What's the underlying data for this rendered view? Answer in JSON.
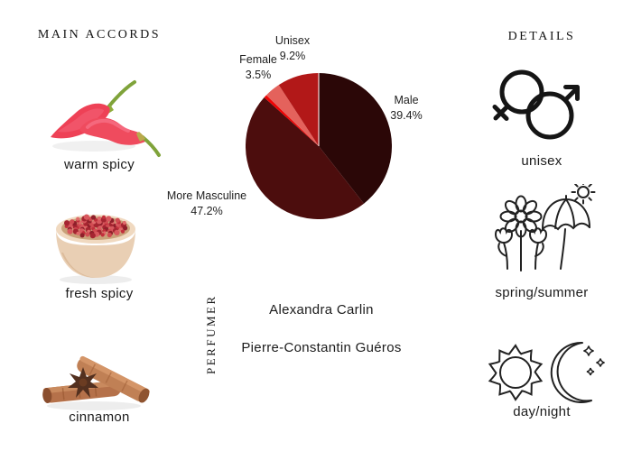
{
  "headers": {
    "main_accords": "MAIN ACCORDS",
    "details": "DETAILS"
  },
  "accords": [
    {
      "label": "warm spicy",
      "icon": "chili-peppers"
    },
    {
      "label": "fresh spicy",
      "icon": "pink-peppercorns-bowl"
    },
    {
      "label": "cinnamon",
      "icon": "cinnamon-sticks"
    }
  ],
  "details": [
    {
      "label": "unisex",
      "icon": "gender-unisex"
    },
    {
      "label": "spring/summer",
      "icon": "flowers-umbrella-sun"
    },
    {
      "label": "day/night",
      "icon": "sun-and-moon"
    }
  ],
  "perfumer": {
    "title": "PERFUMER",
    "names": [
      "Alexandra Carlin",
      "Pierre-Constantin Guéros"
    ]
  },
  "chart_data": {
    "type": "pie",
    "title": "",
    "direction": "clockwise",
    "start_angle_deg": 0,
    "legend_position": "none",
    "slices": [
      {
        "label": "Male",
        "value": 39.4,
        "color": "#2b0707"
      },
      {
        "label": "More Masculine",
        "value": 47.2,
        "color": "#4c0d0d"
      },
      {
        "label": "",
        "value": 0.7,
        "color": "#ee0404"
      },
      {
        "label": "Female",
        "value": 3.5,
        "color": "#e4625c"
      },
      {
        "label": "Unisex",
        "value": 9.2,
        "color": "#b21818"
      }
    ],
    "labels": {
      "male": {
        "name": "Male",
        "pct": "39.4%"
      },
      "more_masculine": {
        "name": "More Masculine",
        "pct": "47.2%"
      },
      "female": {
        "name": "Female",
        "pct": "3.5%"
      },
      "unisex": {
        "name": "Unisex",
        "pct": "9.2%"
      }
    }
  },
  "colors": {
    "background": "#ffffff",
    "text": "#1d1d1d",
    "icon_stroke": "#222222",
    "slice_divider": "#f6dada"
  }
}
